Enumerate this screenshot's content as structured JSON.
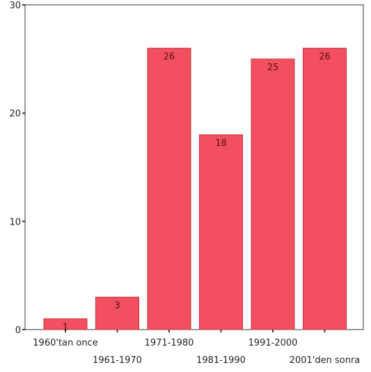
{
  "colors": {
    "bar": "#f25060",
    "bar_stroke": "#c8303c",
    "axis": "#333333"
  },
  "chart_data": {
    "type": "bar",
    "title": "",
    "xlabel": "",
    "ylabel": "",
    "categories": [
      "1960'tan once",
      "1961-1970",
      "1971-1980",
      "1981-1990",
      "1991-2000",
      "2001'den sonra"
    ],
    "values": [
      1,
      3,
      26,
      18,
      25,
      26
    ],
    "ylim": [
      0,
      30
    ],
    "yticks": [
      0,
      10,
      20,
      30
    ],
    "grid": false,
    "legend": "none"
  }
}
